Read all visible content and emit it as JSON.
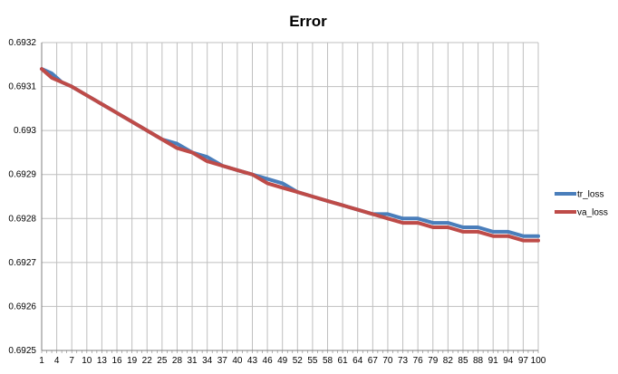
{
  "chart_data": {
    "type": "line",
    "title": "Error",
    "xlabel": "",
    "ylabel": "",
    "ylim": [
      0.6925,
      0.6932
    ],
    "y_ticks": [
      "0.6925",
      "0.6926",
      "0.6927",
      "0.6928",
      "0.6929",
      "0.693",
      "0.6931",
      "0.6932"
    ],
    "x_tick_labels": [
      "1",
      "4",
      "7",
      "10",
      "13",
      "16",
      "19",
      "22",
      "25",
      "28",
      "31",
      "34",
      "37",
      "40",
      "43",
      "46",
      "49",
      "52",
      "55",
      "58",
      "61",
      "64",
      "67",
      "70",
      "73",
      "76",
      "79",
      "82",
      "85",
      "88",
      "91",
      "94",
      "97",
      "100"
    ],
    "grid": true,
    "legend_position": "right",
    "series": [
      {
        "name": "tr_loss",
        "color": "#4A7EBB",
        "x": [
          1,
          3,
          5,
          7,
          10,
          13,
          16,
          19,
          22,
          25,
          28,
          31,
          34,
          37,
          40,
          43,
          46,
          49,
          52,
          55,
          58,
          61,
          64,
          67,
          70,
          73,
          76,
          79,
          82,
          85,
          88,
          91,
          94,
          97,
          100
        ],
        "values": [
          0.69314,
          0.69313,
          0.69311,
          0.6931,
          0.69308,
          0.69306,
          0.69304,
          0.69302,
          0.693,
          0.69298,
          0.69297,
          0.69295,
          0.69294,
          0.69292,
          0.69291,
          0.6929,
          0.69289,
          0.69288,
          0.69286,
          0.69285,
          0.69284,
          0.69283,
          0.69282,
          0.69281,
          0.69281,
          0.6928,
          0.6928,
          0.69279,
          0.69279,
          0.69278,
          0.69278,
          0.69277,
          0.69277,
          0.69276,
          0.69276
        ]
      },
      {
        "name": "va_loss",
        "color": "#BE4B48",
        "x": [
          1,
          3,
          5,
          7,
          10,
          13,
          16,
          19,
          22,
          25,
          28,
          31,
          34,
          37,
          40,
          43,
          46,
          49,
          52,
          55,
          58,
          61,
          64,
          67,
          70,
          73,
          76,
          79,
          82,
          85,
          88,
          91,
          94,
          97,
          100
        ],
        "values": [
          0.69314,
          0.69312,
          0.69311,
          0.6931,
          0.69308,
          0.69306,
          0.69304,
          0.69302,
          0.693,
          0.69298,
          0.69296,
          0.69295,
          0.69293,
          0.69292,
          0.69291,
          0.6929,
          0.69288,
          0.69287,
          0.69286,
          0.69285,
          0.69284,
          0.69283,
          0.69282,
          0.69281,
          0.6928,
          0.69279,
          0.69279,
          0.69278,
          0.69278,
          0.69277,
          0.69277,
          0.69276,
          0.69276,
          0.69275,
          0.69275
        ]
      }
    ]
  }
}
